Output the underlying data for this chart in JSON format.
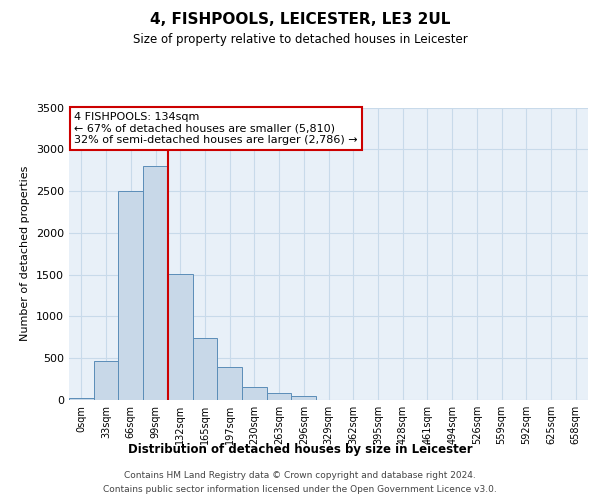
{
  "title": "4, FISHPOOLS, LEICESTER, LE3 2UL",
  "subtitle": "Size of property relative to detached houses in Leicester",
  "xlabel": "Distribution of detached houses by size in Leicester",
  "ylabel": "Number of detached properties",
  "bar_labels": [
    "0sqm",
    "33sqm",
    "66sqm",
    "99sqm",
    "132sqm",
    "165sqm",
    "197sqm",
    "230sqm",
    "263sqm",
    "296sqm",
    "329sqm",
    "362sqm",
    "395sqm",
    "428sqm",
    "461sqm",
    "494sqm",
    "526sqm",
    "559sqm",
    "592sqm",
    "625sqm",
    "658sqm"
  ],
  "bar_heights": [
    20,
    470,
    2500,
    2800,
    1510,
    740,
    400,
    150,
    80,
    50,
    0,
    0,
    0,
    0,
    0,
    0,
    0,
    0,
    0,
    0,
    0
  ],
  "bar_color": "#c8d8e8",
  "bar_edgecolor": "#5b8db8",
  "vline_x": 4,
  "vline_color": "#cc0000",
  "annotation_title": "4 FISHPOOLS: 134sqm",
  "annotation_line1": "← 67% of detached houses are smaller (5,810)",
  "annotation_line2": "32% of semi-detached houses are larger (2,786) →",
  "annotation_box_color": "#ffffff",
  "annotation_box_edgecolor": "#cc0000",
  "ylim": [
    0,
    3500
  ],
  "yticks": [
    0,
    500,
    1000,
    1500,
    2000,
    2500,
    3000,
    3500
  ],
  "grid_color": "#c8daea",
  "background_color": "#e8f0f8",
  "footer_line1": "Contains HM Land Registry data © Crown copyright and database right 2024.",
  "footer_line2": "Contains public sector information licensed under the Open Government Licence v3.0."
}
